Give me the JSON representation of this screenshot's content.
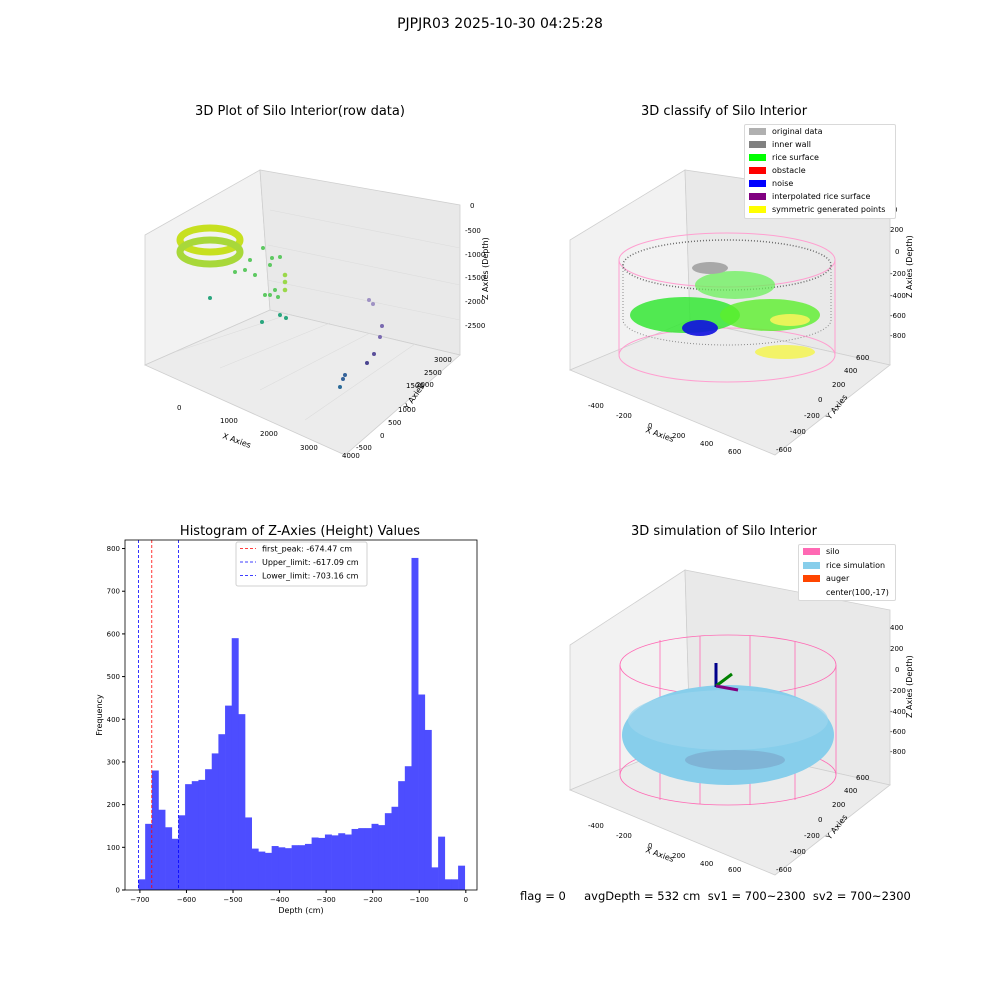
{
  "suptitle": "PJPJR03 2025-10-30 04:25:28",
  "panel1": {
    "title": "3D Plot of Silo Interior(row data)",
    "xlabel": "X Axies",
    "ylabel": "Y Axies",
    "zlabel": "Z Axies (Depth)",
    "xticks": [
      "0",
      "1000",
      "2000",
      "3000",
      "4000"
    ],
    "yticks": [
      "-500",
      "0",
      "500",
      "1000",
      "1500",
      "2000",
      "2500",
      "3000"
    ],
    "zticks": [
      "0",
      "-500",
      "-1000",
      "-1500",
      "-2000",
      "-2500"
    ]
  },
  "panel2": {
    "title": "3D classify of Silo Interior",
    "xlabel": "X Axies",
    "ylabel": "Y Axies",
    "zlabel": "Z Axies (Depth)",
    "xticks": [
      "-400",
      "-200",
      "0",
      "200",
      "400",
      "600"
    ],
    "yticks": [
      "-600",
      "-400",
      "-200",
      "0",
      "200",
      "400",
      "600"
    ],
    "zticks": [
      "200",
      "0",
      "-200",
      "-400",
      "-600",
      "-800"
    ],
    "zticks_top": "0",
    "legend": [
      {
        "label": "original data",
        "color": "#b0b0b0"
      },
      {
        "label": "inner wall",
        "color": "#808080"
      },
      {
        "label": "rice surface",
        "color": "#00ff00"
      },
      {
        "label": "obstacle",
        "color": "#ff0000"
      },
      {
        "label": "noise",
        "color": "#0000ff"
      },
      {
        "label": "interpolated rice surface",
        "color": "#800080"
      },
      {
        "label": "symmetric generated points",
        "color": "#ffff00"
      }
    ]
  },
  "panel3": {
    "title": "Histogram of Z-Axies (Height) Values"
  },
  "panel4": {
    "title": "3D simulation of Silo Interior",
    "xlabel": "X Axies",
    "ylabel": "Y Axies",
    "zlabel": "Z Axies (Depth)",
    "xticks": [
      "-400",
      "-200",
      "0",
      "200",
      "400",
      "600"
    ],
    "yticks": [
      "-600",
      "-400",
      "-200",
      "0",
      "200",
      "400",
      "600"
    ],
    "zticks": [
      "400",
      "200",
      "0",
      "-200",
      "-400",
      "-600",
      "-800"
    ],
    "legend": [
      {
        "label": "silo",
        "color": "#ff69b4"
      },
      {
        "label": "rice simulation",
        "color": "#87ceeb"
      },
      {
        "label": "auger",
        "color": "#ff4500"
      },
      {
        "label": "center(100,-17)",
        "color": ""
      }
    ]
  },
  "status": "flag = 0     avgDepth = 532 cm  sv1 = 700~2300  sv2 = 700~2300",
  "chart_data": [
    {
      "type": "bar",
      "title": "Histogram of Z-Axies (Height) Values",
      "xlabel": "Depth (cm)",
      "ylabel": "Frequency",
      "xlim": [
        -732,
        24
      ],
      "ylim": [
        0,
        820
      ],
      "xticks": [
        -700,
        -600,
        -500,
        -400,
        -300,
        -200,
        -100,
        0
      ],
      "yticks": [
        0,
        100,
        200,
        300,
        400,
        500,
        600,
        700,
        800
      ],
      "bar_color": "#4d4dff",
      "bin_start": -703,
      "bin_width": 14.3,
      "values": [
        25,
        155,
        280,
        188,
        147,
        120,
        175,
        248,
        255,
        258,
        283,
        320,
        365,
        432,
        590,
        412,
        170,
        97,
        90,
        87,
        103,
        100,
        98,
        105,
        105,
        108,
        123,
        122,
        130,
        128,
        133,
        130,
        143,
        145,
        145,
        155,
        152,
        180,
        195,
        255,
        290,
        778,
        458,
        375,
        53,
        125,
        25,
        25,
        57
      ],
      "vlines": [
        {
          "label": "first_peak: -674.47 cm",
          "x": -674.47,
          "color": "#ff0000"
        },
        {
          "label": "Upper_limit: -617.09 cm",
          "x": -617.09,
          "color": "#0000ff"
        },
        {
          "label": "Lower_limit: -703.16 cm",
          "x": -703.16,
          "color": "#0000ff"
        }
      ],
      "legend_position": "top-center"
    }
  ]
}
